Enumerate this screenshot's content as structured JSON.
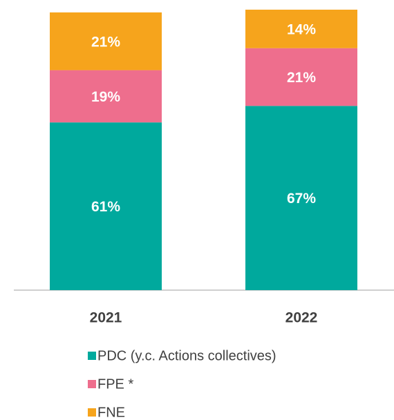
{
  "chart_data": {
    "type": "stacked_bar",
    "categories": [
      "2021",
      "2022"
    ],
    "series": [
      {
        "name": "PDC (y.c. Actions collectives)",
        "color": "#00a99d",
        "values": [
          61,
          67
        ],
        "value_labels": [
          "61%",
          "67%"
        ]
      },
      {
        "name": "FPE *",
        "color": "#ee6e8d",
        "values": [
          19,
          21
        ],
        "value_labels": [
          "19%",
          "21%"
        ]
      },
      {
        "name": "FNE",
        "color": "#f6a41c",
        "values": [
          21,
          14
        ],
        "value_labels": [
          "21%",
          "14%"
        ]
      }
    ],
    "legend": "bottom"
  }
}
